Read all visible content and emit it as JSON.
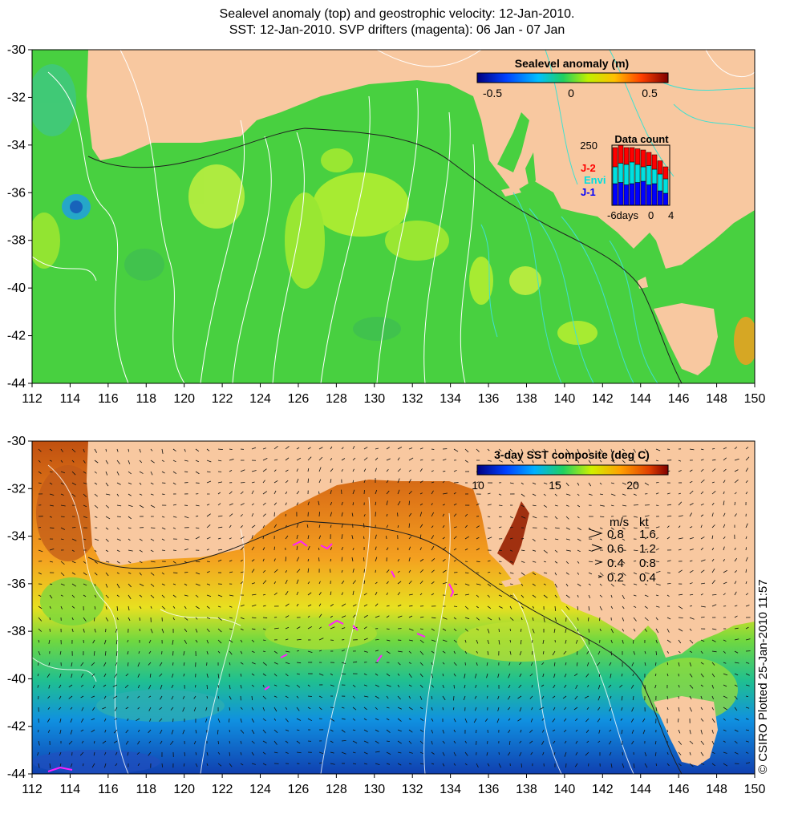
{
  "titles": {
    "line1": "Sealevel anomaly (top) and geostrophic velocity: 12-Jan-2010.",
    "line2": "SST: 12-Jan-2010. SVP drifters (magenta): 06 Jan - 07 Jan"
  },
  "axes": {
    "lon_ticks": [
      "112",
      "114",
      "116",
      "118",
      "120",
      "122",
      "124",
      "126",
      "128",
      "130",
      "132",
      "134",
      "136",
      "138",
      "140",
      "142",
      "144",
      "146",
      "148",
      "150"
    ],
    "lat_ticks": [
      "-30",
      "-32",
      "-34",
      "-36",
      "-38",
      "-40",
      "-42",
      "-44"
    ]
  },
  "top_panel": {
    "colorbar_title": "Sealevel anomaly (m)",
    "colorbar_ticks": [
      "-0.5",
      "0",
      "0.5"
    ],
    "inset": {
      "title": "Data count",
      "ymax_label": "250",
      "satellites": [
        {
          "label": "J-2",
          "color": "#ff0000"
        },
        {
          "label": "Envi",
          "color": "#00e0e0"
        },
        {
          "label": "J-1",
          "color": "#0000ff"
        }
      ],
      "x_labels": [
        "-6days",
        "0",
        "4"
      ],
      "bars": [
        {
          "j1": 90,
          "envi": 70,
          "j2": 80
        },
        {
          "j1": 95,
          "envi": 80,
          "j2": 75
        },
        {
          "j1": 85,
          "envi": 85,
          "j2": 70
        },
        {
          "j1": 90,
          "envi": 90,
          "j2": 60
        },
        {
          "j1": 95,
          "envi": 75,
          "j2": 65
        },
        {
          "j1": 100,
          "envi": 60,
          "j2": 70
        },
        {
          "j1": 85,
          "envi": 80,
          "j2": 55
        },
        {
          "j1": 90,
          "envi": 60,
          "j2": 60
        },
        {
          "j1": 60,
          "envi": 70,
          "j2": 55
        },
        {
          "j1": 50,
          "envi": 60,
          "j2": 50
        }
      ]
    }
  },
  "bottom_panel": {
    "colorbar_title": "3-day SST composite (deg C)",
    "colorbar_ticks": [
      "10",
      "15",
      "20"
    ],
    "legend_header": {
      "ms": "m/s",
      "kt": "kt"
    },
    "legend_rows": [
      {
        "ms": "0.8",
        "kt": "1.6"
      },
      {
        "ms": "0.6",
        "kt": "1.2"
      },
      {
        "ms": "0.4",
        "kt": "0.8"
      },
      {
        "ms": "0.2",
        "kt": "0.4"
      }
    ]
  },
  "credit": "© CSIRO Plotted 25-Jan-2010 11:57",
  "colors": {
    "land": "#f8c8a0",
    "sla_background": "#48d040",
    "sst_warm": "#e88820",
    "sst_cold": "#1060d8",
    "contour_sla": "#ffffff",
    "contour_cyan": "#40e0d0"
  }
}
